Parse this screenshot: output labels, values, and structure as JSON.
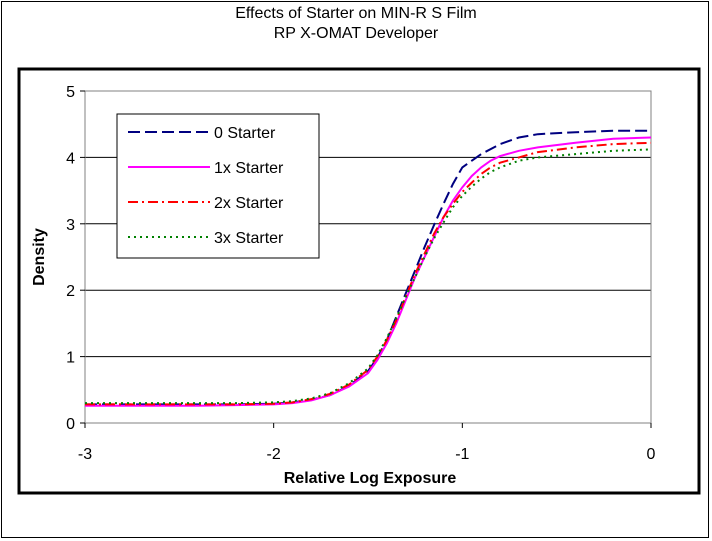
{
  "page": {
    "title_lines": [
      "Effects of Starter on MIN-R S Film",
      "RP X-OMAT Developer"
    ]
  },
  "chart_data": {
    "type": "line",
    "title": "Effects of Starter on MIN-R S Film\nRP X-OMAT Developer",
    "xlabel": "Relative Log Exposure",
    "ylabel": "Density",
    "xlim": [
      -3,
      0
    ],
    "ylim": [
      0,
      5
    ],
    "xticks": [
      -3,
      -2,
      -1,
      0
    ],
    "yticks": [
      0,
      1,
      2,
      3,
      4,
      5
    ],
    "grid": "horizontal",
    "legend_position": "top-left",
    "series": [
      {
        "name": "0 Starter",
        "color": "#000080",
        "dash": "dashed",
        "points": [
          [
            -3.0,
            0.28
          ],
          [
            -2.8,
            0.28
          ],
          [
            -2.6,
            0.28
          ],
          [
            -2.4,
            0.28
          ],
          [
            -2.2,
            0.28
          ],
          [
            -2.0,
            0.29
          ],
          [
            -1.9,
            0.31
          ],
          [
            -1.8,
            0.35
          ],
          [
            -1.7,
            0.42
          ],
          [
            -1.6,
            0.56
          ],
          [
            -1.5,
            0.78
          ],
          [
            -1.45,
            0.98
          ],
          [
            -1.4,
            1.25
          ],
          [
            -1.35,
            1.6
          ],
          [
            -1.3,
            1.95
          ],
          [
            -1.25,
            2.3
          ],
          [
            -1.2,
            2.65
          ],
          [
            -1.15,
            2.98
          ],
          [
            -1.1,
            3.3
          ],
          [
            -1.05,
            3.6
          ],
          [
            -1.0,
            3.85
          ],
          [
            -0.95,
            3.95
          ],
          [
            -0.9,
            4.05
          ],
          [
            -0.8,
            4.2
          ],
          [
            -0.7,
            4.3
          ],
          [
            -0.6,
            4.35
          ],
          [
            -0.4,
            4.38
          ],
          [
            -0.2,
            4.4
          ],
          [
            0.0,
            4.4
          ]
        ]
      },
      {
        "name": "1x Starter",
        "color": "#FF00FF",
        "dash": "solid",
        "points": [
          [
            -3.0,
            0.26
          ],
          [
            -2.8,
            0.26
          ],
          [
            -2.6,
            0.26
          ],
          [
            -2.4,
            0.26
          ],
          [
            -2.2,
            0.27
          ],
          [
            -2.0,
            0.28
          ],
          [
            -1.9,
            0.3
          ],
          [
            -1.8,
            0.34
          ],
          [
            -1.7,
            0.42
          ],
          [
            -1.6,
            0.55
          ],
          [
            -1.5,
            0.75
          ],
          [
            -1.45,
            0.95
          ],
          [
            -1.4,
            1.2
          ],
          [
            -1.35,
            1.5
          ],
          [
            -1.3,
            1.85
          ],
          [
            -1.25,
            2.2
          ],
          [
            -1.2,
            2.5
          ],
          [
            -1.15,
            2.8
          ],
          [
            -1.1,
            3.1
          ],
          [
            -1.05,
            3.35
          ],
          [
            -1.0,
            3.55
          ],
          [
            -0.95,
            3.72
          ],
          [
            -0.9,
            3.85
          ],
          [
            -0.85,
            3.95
          ],
          [
            -0.8,
            4.02
          ],
          [
            -0.7,
            4.1
          ],
          [
            -0.6,
            4.15
          ],
          [
            -0.4,
            4.22
          ],
          [
            -0.2,
            4.28
          ],
          [
            0.0,
            4.3
          ]
        ]
      },
      {
        "name": "2x Starter",
        "color": "#FF0000",
        "dash": "dashdot",
        "points": [
          [
            -3.0,
            0.28
          ],
          [
            -2.8,
            0.28
          ],
          [
            -2.6,
            0.28
          ],
          [
            -2.4,
            0.28
          ],
          [
            -2.2,
            0.28
          ],
          [
            -2.0,
            0.29
          ],
          [
            -1.9,
            0.31
          ],
          [
            -1.8,
            0.36
          ],
          [
            -1.7,
            0.44
          ],
          [
            -1.6,
            0.58
          ],
          [
            -1.5,
            0.8
          ],
          [
            -1.45,
            1.0
          ],
          [
            -1.4,
            1.25
          ],
          [
            -1.35,
            1.55
          ],
          [
            -1.3,
            1.9
          ],
          [
            -1.25,
            2.25
          ],
          [
            -1.2,
            2.55
          ],
          [
            -1.15,
            2.85
          ],
          [
            -1.1,
            3.1
          ],
          [
            -1.05,
            3.3
          ],
          [
            -1.0,
            3.48
          ],
          [
            -0.95,
            3.62
          ],
          [
            -0.9,
            3.75
          ],
          [
            -0.85,
            3.85
          ],
          [
            -0.8,
            3.92
          ],
          [
            -0.7,
            4.0
          ],
          [
            -0.6,
            4.08
          ],
          [
            -0.4,
            4.15
          ],
          [
            -0.2,
            4.2
          ],
          [
            0.0,
            4.22
          ]
        ]
      },
      {
        "name": "3x Starter",
        "color": "#008000",
        "dash": "dotted",
        "points": [
          [
            -3.0,
            0.3
          ],
          [
            -2.8,
            0.3
          ],
          [
            -2.6,
            0.3
          ],
          [
            -2.4,
            0.3
          ],
          [
            -2.2,
            0.3
          ],
          [
            -2.0,
            0.31
          ],
          [
            -1.9,
            0.33
          ],
          [
            -1.8,
            0.37
          ],
          [
            -1.7,
            0.45
          ],
          [
            -1.6,
            0.6
          ],
          [
            -1.5,
            0.82
          ],
          [
            -1.45,
            1.02
          ],
          [
            -1.4,
            1.28
          ],
          [
            -1.35,
            1.58
          ],
          [
            -1.3,
            1.9
          ],
          [
            -1.25,
            2.2
          ],
          [
            -1.2,
            2.5
          ],
          [
            -1.15,
            2.78
          ],
          [
            -1.1,
            3.02
          ],
          [
            -1.05,
            3.25
          ],
          [
            -1.0,
            3.42
          ],
          [
            -0.95,
            3.56
          ],
          [
            -0.9,
            3.68
          ],
          [
            -0.85,
            3.78
          ],
          [
            -0.8,
            3.85
          ],
          [
            -0.7,
            3.95
          ],
          [
            -0.6,
            4.0
          ],
          [
            -0.4,
            4.05
          ],
          [
            -0.2,
            4.1
          ],
          [
            0.0,
            4.12
          ]
        ]
      }
    ]
  }
}
